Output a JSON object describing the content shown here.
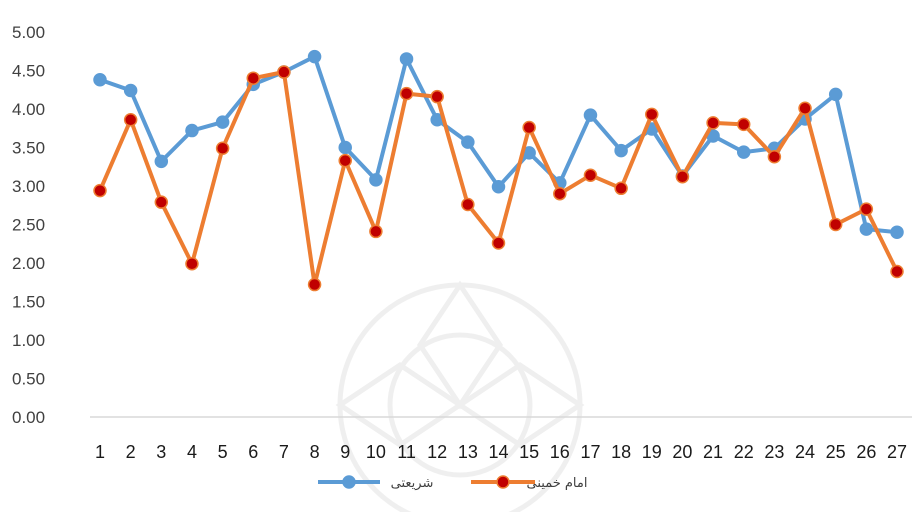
{
  "chart_data": {
    "type": "line",
    "title": "",
    "xlabel": "",
    "ylabel": "",
    "ylim": [
      0,
      5
    ],
    "y_ticks": [
      "0.00",
      "0.50",
      "1.00",
      "1.50",
      "2.00",
      "2.50",
      "3.00",
      "3.50",
      "4.00",
      "4.50",
      "5.00"
    ],
    "categories": [
      "1",
      "2",
      "3",
      "4",
      "5",
      "6",
      "7",
      "8",
      "9",
      "10",
      "11",
      "12",
      "13",
      "14",
      "15",
      "16",
      "17",
      "18",
      "19",
      "20",
      "21",
      "22",
      "23",
      "24",
      "25",
      "26",
      "27"
    ],
    "grid": false,
    "legend_position": "bottom",
    "series": [
      {
        "name": "شریعتی",
        "color": "#5b9bd5",
        "values": [
          4.38,
          4.24,
          3.32,
          3.72,
          3.83,
          4.32,
          4.48,
          4.68,
          3.5,
          3.08,
          4.65,
          3.86,
          3.57,
          2.99,
          3.43,
          3.04,
          3.92,
          3.46,
          3.74,
          3.13,
          3.65,
          3.44,
          3.49,
          3.87,
          4.19,
          2.44,
          2.4
        ]
      },
      {
        "name": "امام خمینی",
        "color": "#ed7d31",
        "marker_color": "#c00000",
        "values": [
          2.94,
          3.86,
          2.79,
          1.99,
          3.49,
          4.4,
          4.48,
          1.72,
          3.33,
          2.41,
          4.2,
          4.16,
          2.76,
          2.26,
          3.76,
          2.9,
          3.14,
          2.97,
          3.93,
          3.12,
          3.82,
          3.8,
          3.38,
          4.01,
          2.5,
          2.7,
          1.89
        ]
      }
    ]
  }
}
